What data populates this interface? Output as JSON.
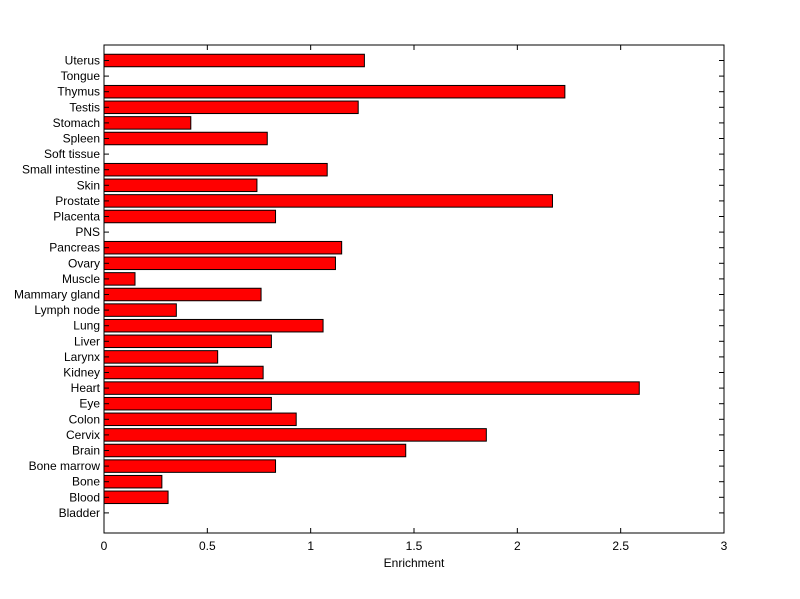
{
  "chart_data": {
    "type": "bar",
    "orientation": "horizontal",
    "categories": [
      "Uterus",
      "Tongue",
      "Thymus",
      "Testis",
      "Stomach",
      "Spleen",
      "Soft tissue",
      "Small intestine",
      "Skin",
      "Prostate",
      "Placenta",
      "PNS",
      "Pancreas",
      "Ovary",
      "Muscle",
      "Mammary gland",
      "Lymph node",
      "Lung",
      "Liver",
      "Larynx",
      "Kidney",
      "Heart",
      "Eye",
      "Colon",
      "Cervix",
      "Brain",
      "Bone marrow",
      "Bone",
      "Blood",
      "Bladder"
    ],
    "values": [
      1.26,
      0,
      2.23,
      1.23,
      0.42,
      0.79,
      0,
      1.08,
      0.74,
      2.17,
      0.83,
      0,
      1.15,
      1.12,
      0.15,
      0.76,
      0.35,
      1.06,
      0.81,
      0.55,
      0.77,
      2.59,
      0.81,
      0.93,
      1.85,
      1.46,
      0.83,
      0.28,
      0.31,
      0
    ],
    "xlabel": "Enrichment",
    "ylabel": "",
    "title": "",
    "xlim": [
      0,
      3
    ],
    "xticks": [
      "0",
      "0.5",
      "1",
      "1.5",
      "2",
      "2.5",
      "3"
    ],
    "grid": false,
    "legend": "none",
    "bar_color": "#ff0000"
  }
}
